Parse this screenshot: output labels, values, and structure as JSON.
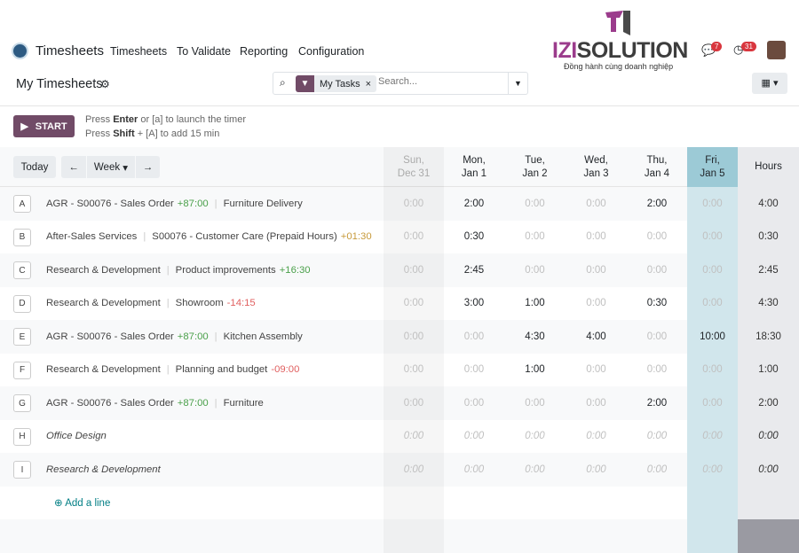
{
  "nav": {
    "app": "Timesheets",
    "menu": [
      "Timesheets",
      "To Validate",
      "Reporting",
      "Configuration"
    ],
    "messages_count": "7",
    "activities_count": "31"
  },
  "brand": {
    "izi": "IZI",
    "solution": "SOLUTION",
    "tagline": "Đồng hành cùng doanh nghiệp"
  },
  "control": {
    "title": "My Timesheets",
    "facet": "My Tasks",
    "search_placeholder": "Search..."
  },
  "timer": {
    "start": "START",
    "hint1_pre": "Press ",
    "hint1_key": "Enter",
    "hint1_post": " or [a] to launch the timer",
    "hint2_pre": "Press ",
    "hint2_key": "Shift",
    "hint2_post": " + [A] to add 15 min"
  },
  "grid": {
    "today": "Today",
    "range": "Week",
    "days": [
      {
        "d": "Sun,",
        "n": "Dec 31"
      },
      {
        "d": "Mon,",
        "n": "Jan 1"
      },
      {
        "d": "Tue,",
        "n": "Jan 2"
      },
      {
        "d": "Wed,",
        "n": "Jan 3"
      },
      {
        "d": "Thu,",
        "n": "Jan 4"
      },
      {
        "d": "Fri,",
        "n": "Jan 5"
      }
    ],
    "hours_label": "Hours",
    "rows": [
      {
        "key": "A",
        "a": "AGR - S00076 - Sales Order",
        "a_rem": "+87:00",
        "a_cls": "pos",
        "b": "Furniture Delivery",
        "b_rem": "",
        "vals": [
          "0:00",
          "2:00",
          "0:00",
          "0:00",
          "2:00",
          "0:00"
        ],
        "total": "4:00"
      },
      {
        "key": "B",
        "a": "After-Sales Services",
        "a_rem": "",
        "b": "S00076 - Customer Care (Prepaid Hours)",
        "b_rem": "+01:30",
        "b_cls": "warn",
        "vals": [
          "0:00",
          "0:30",
          "0:00",
          "0:00",
          "0:00",
          "0:00"
        ],
        "total": "0:30"
      },
      {
        "key": "C",
        "a": "Research & Development",
        "a_rem": "",
        "b": "Product improvements",
        "b_rem": "+16:30",
        "b_cls": "pos",
        "vals": [
          "0:00",
          "2:45",
          "0:00",
          "0:00",
          "0:00",
          "0:00"
        ],
        "total": "2:45"
      },
      {
        "key": "D",
        "a": "Research & Development",
        "a_rem": "",
        "b": "Showroom",
        "b_rem": "-14:15",
        "b_cls": "neg",
        "vals": [
          "0:00",
          "3:00",
          "1:00",
          "0:00",
          "0:30",
          "0:00"
        ],
        "total": "4:30"
      },
      {
        "key": "E",
        "a": "AGR - S00076 - Sales Order",
        "a_rem": "+87:00",
        "a_cls": "pos",
        "b": "Kitchen Assembly",
        "b_rem": "",
        "vals": [
          "0:00",
          "0:00",
          "4:30",
          "4:00",
          "0:00",
          "10:00"
        ],
        "total": "18:30"
      },
      {
        "key": "F",
        "a": "Research & Development",
        "a_rem": "",
        "b": "Planning and budget",
        "b_rem": "-09:00",
        "b_cls": "neg",
        "vals": [
          "0:00",
          "0:00",
          "1:00",
          "0:00",
          "0:00",
          "0:00"
        ],
        "total": "1:00"
      },
      {
        "key": "G",
        "a": "AGR - S00076 - Sales Order",
        "a_rem": "+87:00",
        "a_cls": "pos",
        "b": "Furniture",
        "b_rem": "",
        "vals": [
          "0:00",
          "0:00",
          "0:00",
          "0:00",
          "2:00",
          "0:00"
        ],
        "total": "2:00"
      },
      {
        "key": "H",
        "a": "Office Design",
        "italic": true,
        "vals": [
          "0:00",
          "0:00",
          "0:00",
          "0:00",
          "0:00",
          "0:00"
        ],
        "total": "0:00"
      },
      {
        "key": "I",
        "a": "Research & Development",
        "italic": true,
        "vals": [
          "0:00",
          "0:00",
          "0:00",
          "0:00",
          "0:00",
          "0:00"
        ],
        "total": "0:00"
      }
    ],
    "add_line": "Add a line"
  }
}
